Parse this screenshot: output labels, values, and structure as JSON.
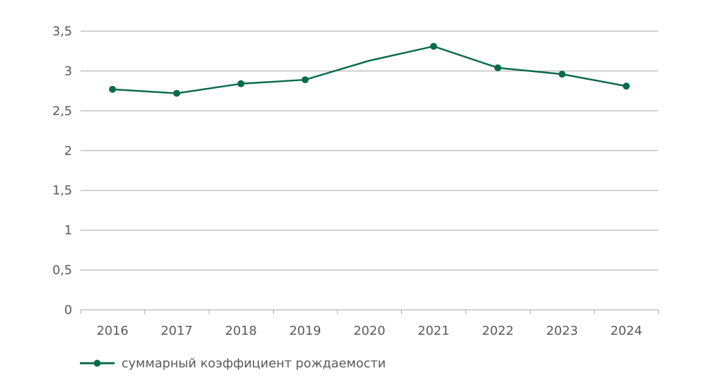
{
  "chart_data": {
    "type": "line",
    "title": "",
    "xlabel": "",
    "ylabel": "",
    "x": [
      "2016",
      "2017",
      "2018",
      "2019",
      "2020",
      "2021",
      "2022",
      "2023",
      "2024"
    ],
    "y_ticks": [
      "0",
      "0,5",
      "1",
      "1,5",
      "2",
      "2,5",
      "3",
      "3,5"
    ],
    "y_tick_values": [
      0,
      0.5,
      1,
      1.5,
      2,
      2.5,
      3,
      3.5
    ],
    "ylim": [
      0,
      3.5
    ],
    "grid": true,
    "legend_position": "bottom-left",
    "series": [
      {
        "name": "суммарный коэффициент рождаемости",
        "color": "#0a6b48",
        "values": [
          2.77,
          2.72,
          2.84,
          2.89,
          3.13,
          3.31,
          3.04,
          2.96,
          2.81
        ],
        "markers": [
          true,
          true,
          true,
          true,
          false,
          true,
          true,
          true,
          true
        ]
      }
    ]
  }
}
